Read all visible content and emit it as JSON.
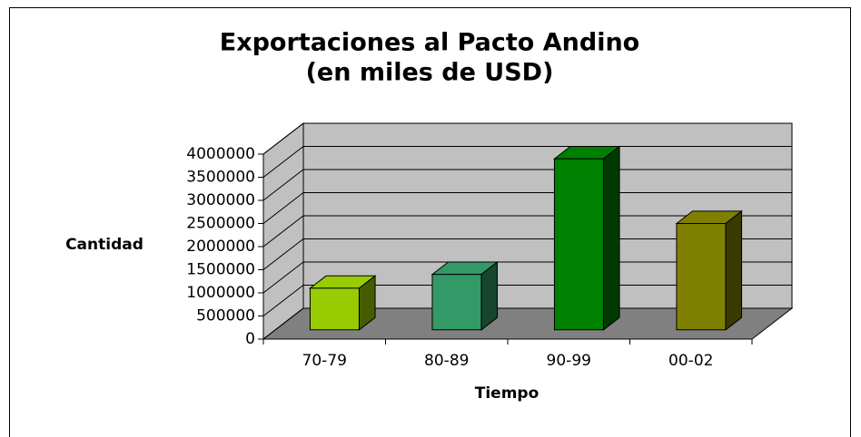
{
  "chart_data": {
    "type": "bar3d",
    "title": [
      "Exportaciones al Pacto Andino",
      "(en miles de USD)"
    ],
    "xlabel": "Tiempo",
    "ylabel": "Cantidad",
    "categories": [
      "70-79",
      "80-89",
      "90-99",
      "00-02"
    ],
    "values": [
      900000,
      1200000,
      3700000,
      2300000
    ],
    "colors": [
      "#99cc00",
      "#339966",
      "#008000",
      "#808000"
    ],
    "ylim": [
      0,
      4000000
    ],
    "yticks": [
      0,
      500000,
      1000000,
      1500000,
      2000000,
      2500000,
      3000000,
      3500000,
      4000000
    ],
    "grid": true
  }
}
